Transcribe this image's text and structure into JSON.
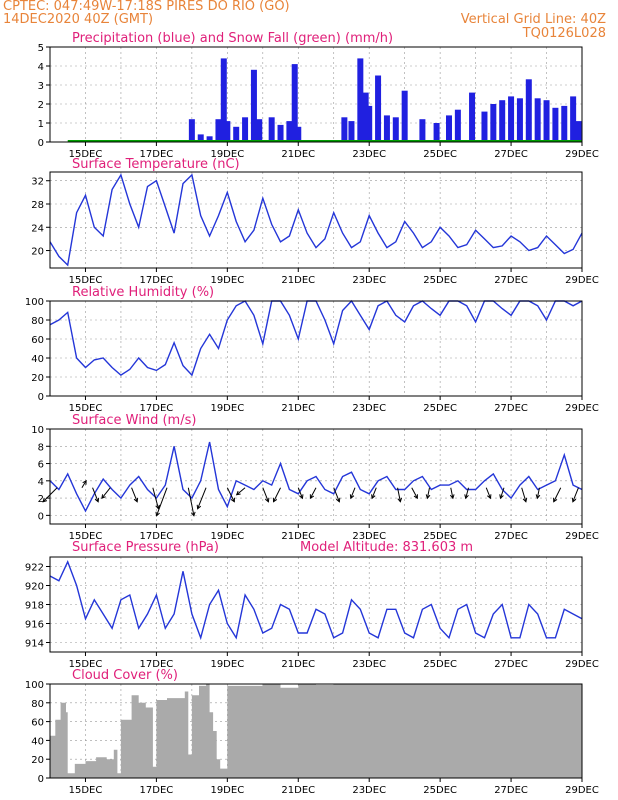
{
  "header": {
    "line1": "CPTEC:  047:49W-17:18S  PIRES DO RIO (GO)",
    "line2": "14DEC2020 40Z (GMT)",
    "right1": "Vertical Grid Line: 40Z",
    "right2": "TQ0126L028"
  },
  "x_ticks": [
    "15DEC",
    "17DEC",
    "19DEC",
    "21DEC",
    "23DEC",
    "25DEC",
    "27DEC",
    "29DEC"
  ],
  "x_domain_days": [
    14.0,
    29.0
  ],
  "colors": {
    "precip": "#2020e0",
    "snow": "#00a000",
    "line": "#2436d8",
    "cloud": "#aaaaaa",
    "title": "#e0207a",
    "header": "#e8843a",
    "grid": "#999999"
  },
  "chart_data": [
    {
      "id": "precip",
      "type": "bar",
      "title": "Precipitation (blue) and Snow Fall (green) (mm/h)",
      "ylim": [
        0,
        5
      ],
      "yticks": [
        0,
        1,
        2,
        3,
        4,
        5
      ],
      "series": [
        {
          "name": "Precipitation",
          "x": [
            "18.0",
            "18.25",
            "18.5",
            "18.75",
            "18.9",
            "19.0",
            "19.25",
            "19.5",
            "19.75",
            "19.9",
            "20.25",
            "20.5",
            "20.75",
            "20.9",
            "21.0",
            "22.3",
            "22.5",
            "22.75",
            "22.9",
            "23.0",
            "23.25",
            "23.5",
            "23.75",
            "24.0",
            "24.5",
            "24.9",
            "25.25",
            "25.5",
            "25.9",
            "26.25",
            "26.5",
            "26.75",
            "27.0",
            "27.25",
            "27.5",
            "27.75",
            "28.0",
            "28.25",
            "28.5",
            "28.75",
            "28.9"
          ],
          "values": [
            1.2,
            0.4,
            0.3,
            1.2,
            4.4,
            1.1,
            0.8,
            1.3,
            3.8,
            1.2,
            1.3,
            0.9,
            1.1,
            4.1,
            0.8,
            1.3,
            1.1,
            4.4,
            2.6,
            1.9,
            3.5,
            1.4,
            1.3,
            2.7,
            1.2,
            1.0,
            1.4,
            1.7,
            2.6,
            1.6,
            2.0,
            2.2,
            2.4,
            2.3,
            3.3,
            2.3,
            2.2,
            1.8,
            1.9,
            2.4,
            1.1
          ]
        },
        {
          "name": "Snow Fall",
          "x": [
            "14.5",
            "29.0"
          ],
          "values": [
            0.05,
            0.05
          ]
        }
      ]
    },
    {
      "id": "temp",
      "type": "line",
      "title": "Surface Temperature (nC)",
      "ylim": [
        17,
        33.5
      ],
      "yticks": [
        20,
        24,
        28,
        32
      ],
      "x": [
        14.0,
        14.25,
        14.5,
        14.75,
        15.0,
        15.25,
        15.5,
        15.75,
        16.0,
        16.25,
        16.5,
        16.75,
        17.0,
        17.25,
        17.5,
        17.75,
        18.0,
        18.25,
        18.5,
        18.75,
        19.0,
        19.25,
        19.5,
        19.75,
        20.0,
        20.25,
        20.5,
        20.75,
        21.0,
        21.25,
        21.5,
        21.75,
        22.0,
        22.25,
        22.5,
        22.75,
        23.0,
        23.25,
        23.5,
        23.75,
        24.0,
        24.25,
        24.5,
        24.75,
        25.0,
        25.25,
        25.5,
        25.75,
        26.0,
        26.25,
        26.5,
        26.75,
        27.0,
        27.25,
        27.5,
        27.75,
        28.0,
        28.25,
        28.5,
        28.75,
        29.0
      ],
      "values": [
        21.5,
        19.0,
        17.5,
        26.5,
        29.5,
        24.0,
        22.5,
        30.5,
        33.0,
        28.0,
        24.0,
        31.0,
        32.0,
        27.5,
        23.0,
        31.5,
        33.0,
        26.0,
        22.5,
        26.0,
        30.0,
        25.0,
        21.5,
        23.5,
        29.0,
        24.5,
        21.5,
        22.5,
        27.0,
        23.0,
        20.5,
        22.0,
        26.5,
        23.0,
        20.5,
        21.5,
        26.0,
        23.0,
        20.5,
        21.5,
        25.0,
        23.0,
        20.5,
        21.5,
        24.0,
        22.5,
        20.5,
        21.0,
        23.5,
        22.0,
        20.5,
        20.8,
        22.5,
        21.5,
        20.0,
        20.5,
        22.5,
        21.0,
        19.5,
        20.2,
        23.0
      ]
    },
    {
      "id": "rh",
      "type": "line",
      "title": "Relative Humidity (%)",
      "ylim": [
        0,
        100
      ],
      "yticks": [
        0,
        20,
        40,
        60,
        80,
        100
      ],
      "x": [
        14.0,
        14.25,
        14.5,
        14.75,
        15.0,
        15.25,
        15.5,
        15.75,
        16.0,
        16.25,
        16.5,
        16.75,
        17.0,
        17.25,
        17.5,
        17.75,
        18.0,
        18.25,
        18.5,
        18.75,
        19.0,
        19.25,
        19.5,
        19.75,
        20.0,
        20.25,
        20.5,
        20.75,
        21.0,
        21.25,
        21.5,
        21.75,
        22.0,
        22.25,
        22.5,
        22.75,
        23.0,
        23.25,
        23.5,
        23.75,
        24.0,
        24.25,
        24.5,
        24.75,
        25.0,
        25.25,
        25.5,
        25.75,
        26.0,
        26.25,
        26.5,
        26.75,
        27.0,
        27.25,
        27.5,
        27.75,
        28.0,
        28.25,
        28.5,
        28.75,
        29.0
      ],
      "values": [
        75,
        80,
        88,
        40,
        30,
        38,
        40,
        30,
        22,
        28,
        40,
        30,
        27,
        33,
        56,
        32,
        22,
        50,
        65,
        50,
        80,
        95,
        100,
        85,
        55,
        100,
        100,
        85,
        60,
        100,
        100,
        80,
        55,
        90,
        100,
        85,
        70,
        95,
        100,
        85,
        78,
        95,
        100,
        92,
        85,
        100,
        100,
        95,
        78,
        100,
        100,
        92,
        85,
        100,
        100,
        95,
        80,
        100,
        100,
        95,
        100
      ]
    },
    {
      "id": "wind",
      "type": "line",
      "title": "Surface Wind (m/s)",
      "ylim": [
        -1,
        10
      ],
      "yticks": [
        0,
        2,
        4,
        6,
        8,
        10
      ],
      "x": [
        14.0,
        14.25,
        14.5,
        14.75,
        15.0,
        15.25,
        15.5,
        15.75,
        16.0,
        16.25,
        16.5,
        16.75,
        17.0,
        17.25,
        17.5,
        17.75,
        18.0,
        18.25,
        18.5,
        18.75,
        19.0,
        19.25,
        19.5,
        19.75,
        20.0,
        20.25,
        20.5,
        20.75,
        21.0,
        21.25,
        21.5,
        21.75,
        22.0,
        22.25,
        22.5,
        22.75,
        23.0,
        23.25,
        23.5,
        23.75,
        24.0,
        24.25,
        24.5,
        24.75,
        25.0,
        25.25,
        25.5,
        25.75,
        26.0,
        26.25,
        26.5,
        26.75,
        27.0,
        27.25,
        27.5,
        27.75,
        28.0,
        28.25,
        28.5,
        28.75,
        29.0
      ],
      "values": [
        4.0,
        3.0,
        4.8,
        2.5,
        0.5,
        2.5,
        4.2,
        3.0,
        2.0,
        3.5,
        4.5,
        3.0,
        2.0,
        3.5,
        8.0,
        3.0,
        2.0,
        4.0,
        8.5,
        3.0,
        1.0,
        4.0,
        3.5,
        3.0,
        4.0,
        3.5,
        6.0,
        3.0,
        2.5,
        4.0,
        4.5,
        3.0,
        2.5,
        4.5,
        5.0,
        3.0,
        2.5,
        4.0,
        4.5,
        3.0,
        3.0,
        4.0,
        4.5,
        3.0,
        3.5,
        3.5,
        4.0,
        3.0,
        3.0,
        4.0,
        4.8,
        3.0,
        2.0,
        3.5,
        4.5,
        3.0,
        3.5,
        4.0,
        7.0,
        3.5,
        3.0
      ],
      "vectors": {
        "x": [
          14.2,
          14.9,
          15.2,
          15.7,
          16.3,
          16.9,
          17.3,
          17.9,
          18.4,
          19.0,
          19.5,
          20.0,
          20.5,
          21.0,
          21.5,
          22.0,
          22.6,
          23.2,
          23.8,
          24.2,
          24.7,
          25.3,
          25.8,
          26.3,
          26.8,
          27.3,
          27.8,
          28.4,
          28.9
        ],
        "u": [
          -2,
          0.6,
          0.8,
          -1.2,
          0.8,
          0.8,
          -1.5,
          0.8,
          -1.2,
          1.0,
          -1.2,
          0.8,
          -1.0,
          0.6,
          -0.8,
          0.8,
          -0.6,
          -0.6,
          0.4,
          0.8,
          -0.3,
          0.3,
          -0.4,
          0.6,
          -0.5,
          0.6,
          -0.3,
          -1.0,
          -0.8
        ],
        "v": [
          -2,
          1,
          -2,
          -1.5,
          -2,
          -3,
          -4,
          -4,
          -3,
          -2,
          -1,
          -2,
          -2,
          -1.5,
          -1.5,
          -2,
          -1.5,
          -1.5,
          -2,
          -1.5,
          -1.5,
          -1.5,
          -1.5,
          -1.5,
          -1.5,
          -2,
          -1.5,
          -2,
          -2
        ]
      }
    },
    {
      "id": "pres",
      "type": "line",
      "title": "Surface Pressure (hPa)",
      "annotation": "Model Altitude: 831.603 m",
      "ylim": [
        913,
        923
      ],
      "yticks": [
        914,
        916,
        918,
        920,
        922
      ],
      "x": [
        14.0,
        14.25,
        14.5,
        14.75,
        15.0,
        15.25,
        15.5,
        15.75,
        16.0,
        16.25,
        16.5,
        16.75,
        17.0,
        17.25,
        17.5,
        17.75,
        18.0,
        18.25,
        18.5,
        18.75,
        19.0,
        19.25,
        19.5,
        19.75,
        20.0,
        20.25,
        20.5,
        20.75,
        21.0,
        21.25,
        21.5,
        21.75,
        22.0,
        22.25,
        22.5,
        22.75,
        23.0,
        23.25,
        23.5,
        23.75,
        24.0,
        24.25,
        24.5,
        24.75,
        25.0,
        25.25,
        25.5,
        25.75,
        26.0,
        26.25,
        26.5,
        26.75,
        27.0,
        27.25,
        27.5,
        27.75,
        28.0,
        28.25,
        28.5,
        28.75,
        29.0
      ],
      "values": [
        921,
        920.5,
        922.5,
        920,
        916.5,
        918.5,
        917,
        915.5,
        918.5,
        919,
        915.5,
        917,
        919,
        915.5,
        917,
        921.5,
        917,
        914.5,
        918,
        919.5,
        916,
        914.5,
        919,
        917.5,
        915,
        915.5,
        918,
        917.5,
        915,
        915,
        917.5,
        917,
        914.5,
        915,
        918.5,
        917.5,
        915,
        914.5,
        917.5,
        917.5,
        915,
        914.5,
        917.5,
        918,
        915.5,
        914.5,
        917.5,
        918,
        915,
        914.5,
        917,
        918,
        914.5,
        914.5,
        918,
        917,
        914.5,
        914.5,
        917.5,
        917,
        916.5
      ]
    },
    {
      "id": "cloud",
      "type": "area",
      "title": "Cloud Cover (%)",
      "ylim": [
        0,
        100
      ],
      "yticks": [
        0,
        20,
        40,
        60,
        80,
        100
      ],
      "x": [
        14.0,
        14.15,
        14.3,
        14.45,
        14.5,
        14.7,
        15.0,
        15.3,
        15.6,
        15.8,
        15.9,
        16.0,
        16.3,
        16.5,
        16.7,
        16.9,
        17.0,
        17.3,
        17.6,
        17.8,
        17.9,
        18.0,
        18.2,
        18.4,
        18.5,
        18.6,
        18.7,
        18.8,
        19.0,
        19.5,
        20.0,
        20.5,
        21.0,
        21.5,
        22.0,
        22.5,
        23.0,
        23.5,
        24.0,
        24.5,
        25.0,
        25.5,
        26.0,
        26.5,
        27.0,
        27.5,
        28.0,
        28.5,
        29.0
      ],
      "values": [
        45,
        62,
        80,
        70,
        5,
        15,
        18,
        22,
        20,
        30,
        5,
        62,
        88,
        80,
        75,
        12,
        83,
        85,
        85,
        92,
        25,
        88,
        98,
        100,
        70,
        50,
        20,
        10,
        98,
        98,
        100,
        96,
        100,
        99,
        100,
        100,
        100,
        100,
        100,
        100,
        100,
        100,
        100,
        100,
        100,
        100,
        100,
        100,
        100
      ]
    }
  ]
}
